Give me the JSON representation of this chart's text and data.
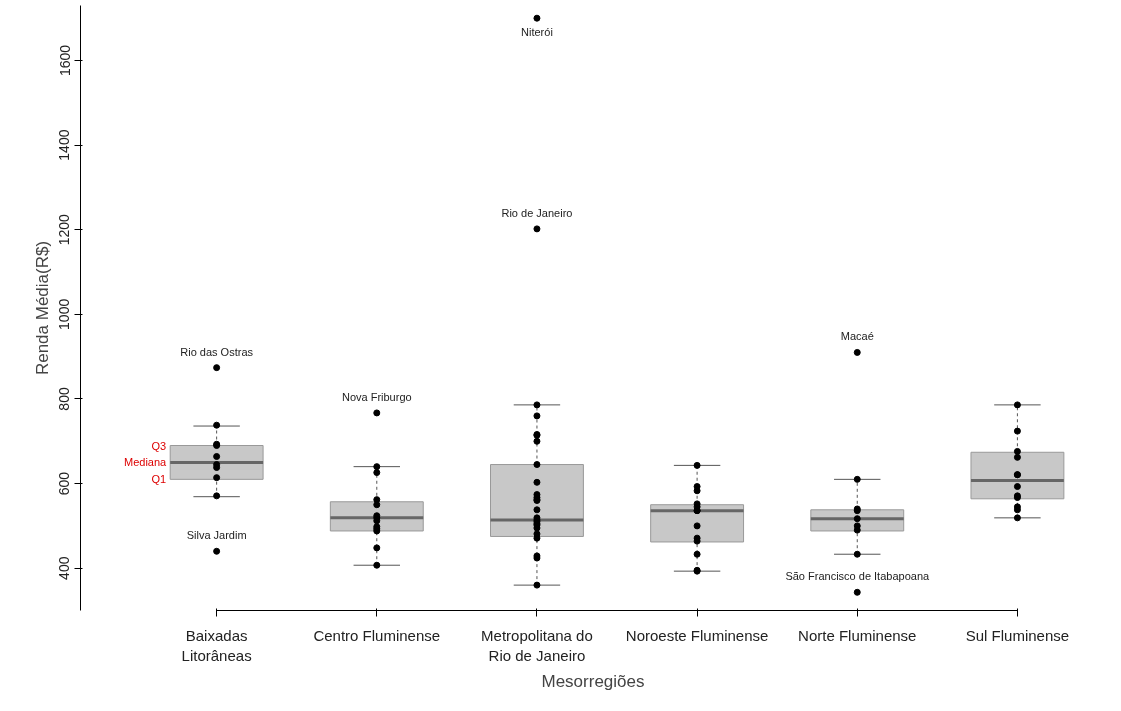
{
  "chart_data": {
    "type": "box",
    "xlabel": "Mesorregiões",
    "ylabel": "Renda Média(R$)",
    "categories": [
      "Baixadas\nLitorâneas",
      "Centro Fluminense",
      "Metropolitana do\nRio de Janeiro",
      "Noroeste Fluminense",
      "Norte Fluminense",
      "Sul Fluminense"
    ],
    "color": "#c8c8c8",
    "boxes": [
      {
        "low": 569,
        "q1": 610,
        "median": 650,
        "q3": 690,
        "high": 736,
        "outliers": [
          874,
          440
        ]
      },
      {
        "low": 407,
        "q1": 488,
        "median": 519,
        "q3": 557,
        "high": 640,
        "outliers": [
          767
        ]
      },
      {
        "low": 360,
        "q1": 475,
        "median": 514,
        "q3": 645,
        "high": 786,
        "outliers": [
          1700,
          1202
        ]
      },
      {
        "low": 393,
        "q1": 462,
        "median": 536,
        "q3": 550,
        "high": 643
      },
      {
        "low": 433,
        "q1": 488,
        "median": 517,
        "q3": 538,
        "high": 610,
        "outliers": [
          910,
          343
        ]
      },
      {
        "low": 519,
        "q1": 564,
        "median": 607,
        "q3": 674,
        "high": 786
      }
    ],
    "series": [
      {
        "type": "scatter",
        "color": "#000000",
        "x": [
          "Baixadas\nLitorâneas",
          "Baixadas\nLitorâneas",
          "Baixadas\nLitorâneas",
          "Baixadas\nLitorâneas",
          "Baixadas\nLitorâneas",
          "Baixadas\nLitorâneas",
          "Baixadas\nLitorâneas",
          "Baixadas\nLitorâneas",
          "Centro Fluminense",
          "Centro Fluminense",
          "Centro Fluminense",
          "Centro Fluminense",
          "Centro Fluminense",
          "Centro Fluminense",
          "Centro Fluminense",
          "Centro Fluminense",
          "Centro Fluminense",
          "Centro Fluminense",
          "Centro Fluminense",
          "Centro Fluminense",
          "Metropolitana do\nRio de Janeiro",
          "Metropolitana do\nRio de Janeiro",
          "Metropolitana do\nRio de Janeiro",
          "Metropolitana do\nRio de Janeiro",
          "Metropolitana do\nRio de Janeiro",
          "Metropolitana do\nRio de Janeiro",
          "Metropolitana do\nRio de Janeiro",
          "Metropolitana do\nRio de Janeiro",
          "Metropolitana do\nRio de Janeiro",
          "Metropolitana do\nRio de Janeiro",
          "Metropolitana do\nRio de Janeiro",
          "Metropolitana do\nRio de Janeiro",
          "Metropolitana do\nRio de Janeiro",
          "Metropolitana do\nRio de Janeiro",
          "Metropolitana do\nRio de Janeiro",
          "Metropolitana do\nRio de Janeiro",
          "Metropolitana do\nRio de Janeiro",
          "Metropolitana do\nRio de Janeiro",
          "Metropolitana do\nRio de Janeiro",
          "Metropolitana do\nRio de Janeiro",
          "Metropolitana do\nRio de Janeiro",
          "Metropolitana do\nRio de Janeiro",
          "Metropolitana do\nRio de Janeiro",
          "Noroeste Fluminense",
          "Noroeste Fluminense",
          "Noroeste Fluminense",
          "Noroeste Fluminense",
          "Noroeste Fluminense",
          "Noroeste Fluminense",
          "Noroeste Fluminense",
          "Noroeste Fluminense",
          "Noroeste Fluminense",
          "Noroeste Fluminense",
          "Noroeste Fluminense",
          "Noroeste Fluminense",
          "Noroeste Fluminense",
          "Norte Fluminense",
          "Norte Fluminense",
          "Norte Fluminense",
          "Norte Fluminense",
          "Norte Fluminense",
          "Norte Fluminense",
          "Norte Fluminense",
          "Sul Fluminense",
          "Sul Fluminense",
          "Sul Fluminense",
          "Sul Fluminense",
          "Sul Fluminense",
          "Sul Fluminense",
          "Sul Fluminense",
          "Sul Fluminense",
          "Sul Fluminense",
          "Sul Fluminense",
          "Sul Fluminense",
          "Sul Fluminense"
        ],
        "values": [
          738,
          690,
          693,
          664,
          645,
          638,
          614,
          571,
          640,
          626,
          562,
          550,
          524,
          519,
          512,
          498,
          493,
          488,
          448,
          407,
          786,
          760,
          714,
          700,
          716,
          645,
          603,
          574,
          562,
          567,
          560,
          538,
          519,
          514,
          505,
          495,
          510,
          502,
          481,
          471,
          429,
          424,
          360,
          643,
          593,
          583,
          552,
          545,
          536,
          536,
          500,
          471,
          464,
          433,
          395,
          393,
          610,
          540,
          536,
          517,
          500,
          490,
          433,
          786,
          724,
          676,
          662,
          621,
          621,
          593,
          571,
          567,
          545,
          538,
          519
        ]
      }
    ],
    "annotations": [
      "Rio das Ostras",
      "Silva Jardim",
      "Nova Friburgo",
      "Niterói",
      "Rio de Janeiro",
      "Macaé",
      "São Francisco de Itabapoana",
      "Q3",
      "Mediana",
      "Q1"
    ],
    "ylim": [
      300,
      1730
    ],
    "yticks": [
      400,
      600,
      800,
      1000,
      1200,
      1400,
      1600
    ],
    "marker": "circle",
    "grid": false
  }
}
